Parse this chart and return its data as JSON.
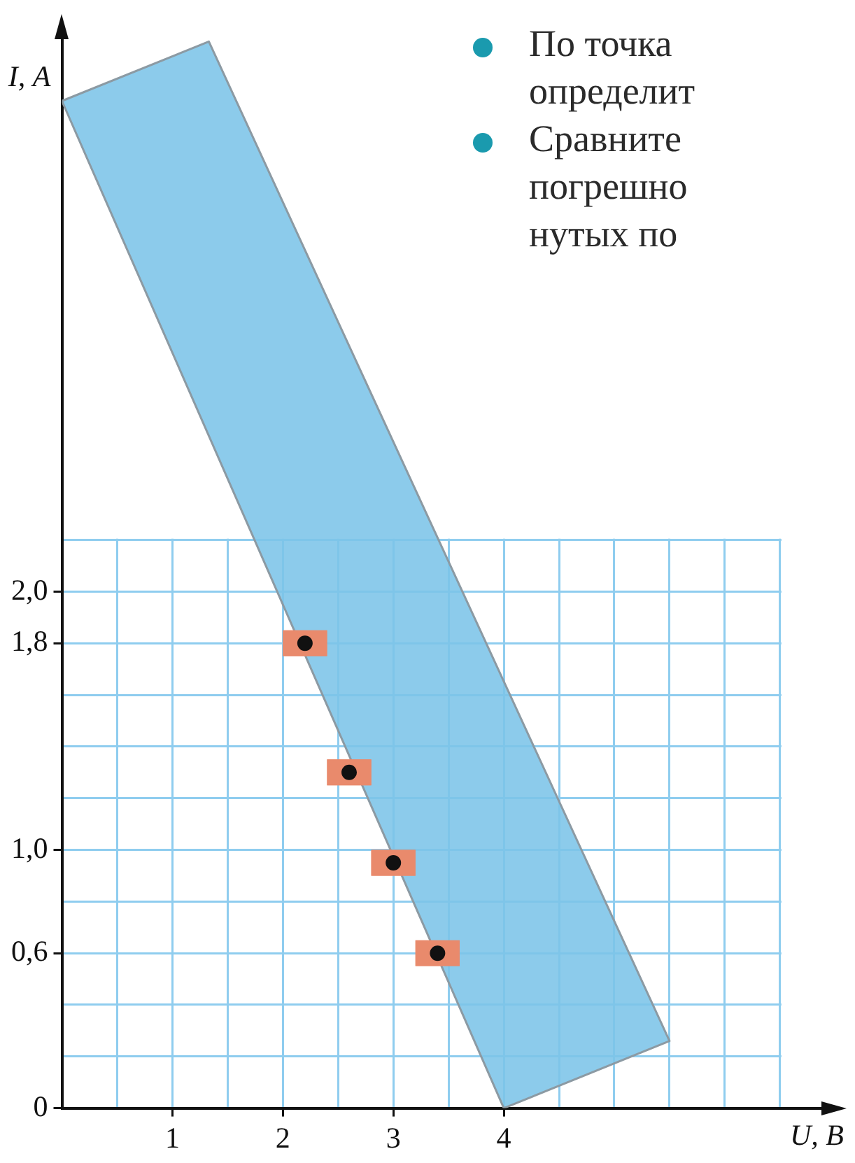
{
  "chart_data": {
    "type": "scatter",
    "xlabel": "U, В",
    "ylabel": "I, А",
    "annotations": [
      "По точка\nопределит",
      "Сравните\nпогрешно\nнутых по"
    ],
    "xlim": [
      0,
      6.9
    ],
    "ylim": [
      0,
      4.15
    ],
    "xticks": [
      {
        "value": 0,
        "label": null
      },
      {
        "value": 0.5,
        "label": null
      },
      1,
      {
        "value": 1.5,
        "label": null
      },
      2,
      {
        "value": 2.5,
        "label": null
      },
      3,
      {
        "value": 3.5,
        "label": null
      },
      4,
      {
        "value": 4.5,
        "label": null
      },
      {
        "value": 5,
        "label": null
      },
      {
        "value": 5.5,
        "label": null
      },
      {
        "value": 6,
        "label": null
      },
      {
        "value": 6.5,
        "label": null
      }
    ],
    "yticks": [
      0,
      {
        "value": 0.2,
        "label": null
      },
      {
        "value": 0.4,
        "label": null
      },
      {
        "value": 0.6,
        "label": "0,6"
      },
      {
        "value": 0.8,
        "label": null
      },
      {
        "value": 1,
        "label": "1,0"
      },
      {
        "value": 1.2,
        "label": null
      },
      {
        "value": 1.4,
        "label": null
      },
      {
        "value": 1.6,
        "label": null
      },
      {
        "value": 1.8,
        "label": "1,8"
      },
      {
        "value": 2,
        "label": "2,0"
      },
      {
        "value": 2.2,
        "label": null
      }
    ],
    "grid": true,
    "legend": false,
    "series": [
      {
        "type": "area",
        "color": "#7cc4e8",
        "x": [
          0,
          1.33,
          5.5,
          4,
          0
        ],
        "values": [
          3.9,
          4.13,
          0.26,
          0,
          3.9
        ]
      },
      {
        "type": "scatter",
        "marker": "circle",
        "color": "#111111",
        "x": [
          2.2,
          2.6,
          3,
          3.4
        ],
        "values": [
          1.8,
          1.3,
          0.95,
          0.6
        ],
        "errors": [
          0.05,
          0.05,
          0.05,
          0.05
        ],
        "xerrors": [
          0.2,
          0.2,
          0.2,
          0.2
        ]
      }
    ]
  }
}
